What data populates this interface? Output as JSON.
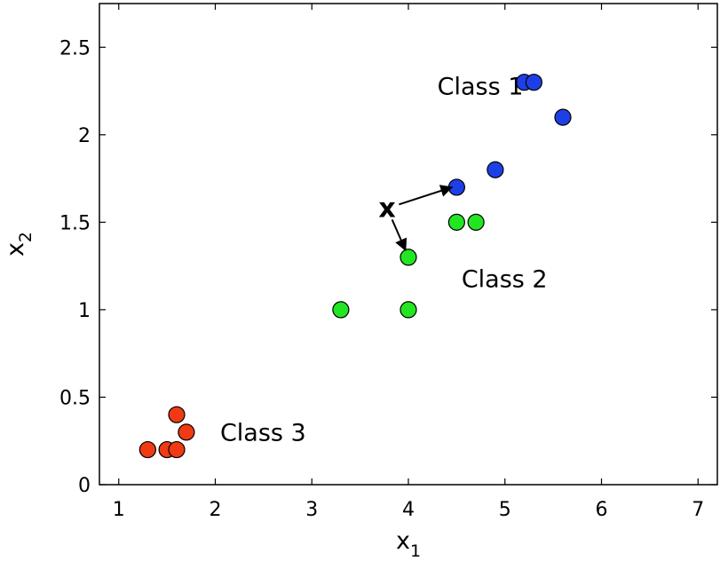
{
  "chart_data": {
    "type": "scatter",
    "title": "",
    "xlabel": {
      "base": "x",
      "sub": "1"
    },
    "ylabel": {
      "base": "x",
      "sub": "2"
    },
    "xlim": [
      0.8,
      7.2
    ],
    "ylim": [
      0,
      2.75
    ],
    "x_ticks": [
      {
        "value": 1,
        "label": "1"
      },
      {
        "value": 2,
        "label": "2"
      },
      {
        "value": 3,
        "label": "3"
      },
      {
        "value": 4,
        "label": "4"
      },
      {
        "value": 5,
        "label": "5"
      },
      {
        "value": 6,
        "label": "6"
      },
      {
        "value": 7,
        "label": "7"
      }
    ],
    "y_ticks": [
      {
        "value": 0,
        "label": "0"
      },
      {
        "value": 0.5,
        "label": "0.5"
      },
      {
        "value": 1,
        "label": "1"
      },
      {
        "value": 1.5,
        "label": "1.5"
      },
      {
        "value": 2,
        "label": "2"
      },
      {
        "value": 2.5,
        "label": "2.5"
      }
    ],
    "grid": false,
    "series": [
      {
        "color": "#1f3fe6",
        "points": [
          [
            4.5,
            1.7
          ],
          [
            4.9,
            1.8
          ],
          [
            5.2,
            2.3
          ],
          [
            5.3,
            2.3
          ],
          [
            5.6,
            2.1
          ]
        ]
      },
      {
        "color": "#22e622",
        "points": [
          [
            3.3,
            1.0
          ],
          [
            4.0,
            1.0
          ],
          [
            4.0,
            1.3
          ],
          [
            4.5,
            1.5
          ],
          [
            4.7,
            1.5
          ]
        ]
      },
      {
        "color": "#f03a14",
        "points": [
          [
            1.3,
            0.2
          ],
          [
            1.5,
            0.2
          ],
          [
            1.6,
            0.2
          ],
          [
            1.6,
            0.4
          ],
          [
            1.7,
            0.3
          ]
        ]
      }
    ],
    "annotations": [
      {
        "text": "Class 1",
        "x": 4.3,
        "y": 2.23
      },
      {
        "text": "Class 2",
        "x": 4.55,
        "y": 1.13
      },
      {
        "text": "Class 3",
        "x": 2.05,
        "y": 0.25
      }
    ],
    "query_point": {
      "label": "x",
      "x": 3.78,
      "y": 1.58,
      "arrows_to": [
        [
          4.45,
          1.7
        ],
        [
          3.97,
          1.34
        ]
      ]
    }
  }
}
